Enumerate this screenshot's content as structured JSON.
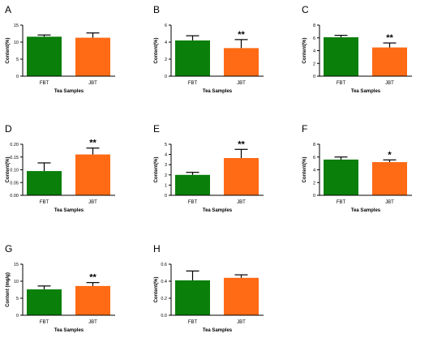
{
  "colors": {
    "FBT": "#0a7f0a",
    "JBT": "#ff6a14",
    "axis": "#000000"
  },
  "chart_data": [
    {
      "panel": "A",
      "type": "bar",
      "categories": [
        "FBT",
        "JBT"
      ],
      "values": [
        11.6,
        11.3
      ],
      "errors": [
        0.5,
        1.4
      ],
      "significance": [
        "",
        ""
      ],
      "ylim": [
        0,
        15
      ],
      "yticks": [
        0,
        5,
        10,
        15
      ],
      "ylabel": "Content(%)",
      "xlabel": "Tea Samples"
    },
    {
      "panel": "B",
      "type": "bar",
      "categories": [
        "FBT",
        "JBT"
      ],
      "values": [
        4.2,
        3.3
      ],
      "errors": [
        0.55,
        1.0
      ],
      "significance": [
        "",
        "**"
      ],
      "ylim": [
        0,
        6
      ],
      "yticks": [
        0,
        2,
        4,
        6
      ],
      "ylabel": "Content(%)",
      "xlabel": "Tea Samples"
    },
    {
      "panel": "C",
      "type": "bar",
      "categories": [
        "FBT",
        "JBT"
      ],
      "values": [
        6.1,
        4.5
      ],
      "errors": [
        0.3,
        0.7
      ],
      "significance": [
        "",
        "**"
      ],
      "ylim": [
        0,
        8
      ],
      "yticks": [
        0,
        2,
        4,
        6,
        8
      ],
      "ylabel": "Content(%)",
      "xlabel": "Tea Samples"
    },
    {
      "panel": "D",
      "type": "bar",
      "categories": [
        "FBT",
        "JBT"
      ],
      "values": [
        0.095,
        0.16
      ],
      "errors": [
        0.032,
        0.025
      ],
      "significance": [
        "",
        "**"
      ],
      "ylim": [
        0,
        0.2
      ],
      "yticks": [
        0,
        0.05,
        0.1,
        0.15,
        0.2
      ],
      "ytick_labels": [
        "0.00",
        "0.05",
        "0.10",
        "0.15",
        "0.20"
      ],
      "ylabel": "Content(%)",
      "xlabel": "Tea Samples"
    },
    {
      "panel": "E",
      "type": "bar",
      "categories": [
        "FBT",
        "JBT"
      ],
      "values": [
        2.0,
        3.65
      ],
      "errors": [
        0.25,
        0.85
      ],
      "significance": [
        "",
        "**"
      ],
      "ylim": [
        0,
        5
      ],
      "yticks": [
        0,
        1,
        2,
        3,
        4,
        5
      ],
      "ylabel": "Content(%)",
      "xlabel": "Tea Samples"
    },
    {
      "panel": "F",
      "type": "bar",
      "categories": [
        "FBT",
        "JBT"
      ],
      "values": [
        5.6,
        5.2
      ],
      "errors": [
        0.4,
        0.35
      ],
      "significance": [
        "",
        "*"
      ],
      "ylim": [
        0,
        8
      ],
      "yticks": [
        0,
        2,
        4,
        6,
        8
      ],
      "ylabel": "Content(%)",
      "xlabel": "Tea Samples"
    },
    {
      "panel": "G",
      "type": "bar",
      "categories": [
        "FBT",
        "JBT"
      ],
      "values": [
        7.6,
        8.6
      ],
      "errors": [
        1.0,
        1.0
      ],
      "significance": [
        "",
        "**"
      ],
      "ylim": [
        0,
        15
      ],
      "yticks": [
        0,
        5,
        10,
        15
      ],
      "ylabel": "Content (mg/g)",
      "xlabel": "Tea Samples"
    },
    {
      "panel": "H",
      "type": "bar",
      "categories": [
        "FBT",
        "JBT"
      ],
      "values": [
        0.41,
        0.44
      ],
      "errors": [
        0.11,
        0.035
      ],
      "significance": [
        "",
        ""
      ],
      "ylim": [
        0,
        0.6
      ],
      "yticks": [
        0,
        0.2,
        0.4,
        0.6
      ],
      "ytick_labels": [
        "0.0",
        "0.2",
        "0.4",
        "0.6"
      ],
      "ylabel": "Content(%)",
      "xlabel": "Tea Samples"
    }
  ]
}
